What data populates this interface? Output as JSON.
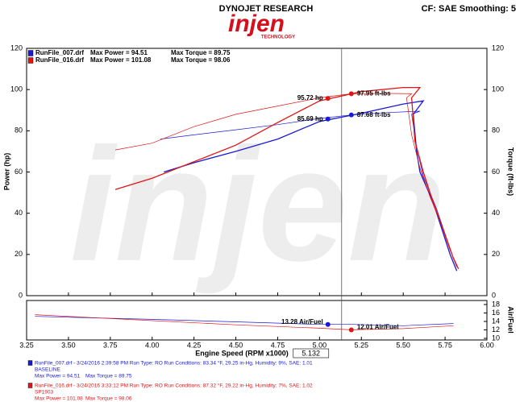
{
  "chart_data": {
    "type": "line",
    "title": "DYNOJET RESEARCH",
    "subtitle": "CF: SAE  Smoothing: 5",
    "logo_text": "injen",
    "logo_subtext": "TECHNOLOGY",
    "xlabel": "Engine Speed (RPM x1000)",
    "ylabel": "Power (hp)",
    "y2label": "Torque (ft-lbs)",
    "afr_label": "Air/Fuel",
    "xlim": [
      3.25,
      6.0
    ],
    "xticks": [
      3.25,
      {
        "value": 3.5,
        "label": "3.50"
      },
      3.75,
      {
        "value": 4.0,
        "label": "4.00"
      },
      4.25,
      {
        "value": 4.5,
        "label": "4.50"
      },
      4.75,
      {
        "value": 5.0,
        "label": "5.00"
      },
      5.25,
      {
        "value": 5.5,
        "label": "5.50"
      },
      5.75,
      {
        "value": 6.0,
        "label": "6.00"
      }
    ],
    "ylim": [
      0,
      120
    ],
    "yticks": [
      0,
      20,
      40,
      60,
      80,
      100,
      120
    ],
    "y2lim": [
      0,
      120
    ],
    "y2ticks": [
      0,
      20,
      40,
      60,
      80,
      100,
      120
    ],
    "afr_lim": [
      10,
      18
    ],
    "afr_ticks": [
      10,
      12,
      14,
      16,
      18
    ],
    "grid": false,
    "cursor": 5.132,
    "runs": [
      {
        "name": "RunFile_007.drf",
        "color": "#1a1ad6",
        "max_power": "Max Power = 94.51",
        "max_torque": "Max Torque = 89.75",
        "info": "RunFile_007.drf - 3/24/2016 2:39:58 PM  Run Type: RO  Run Conditions: 83.34 °F, 29.25 in-Hg,  Humidity:  9%, SAE: 1.01",
        "note": "BASELINE",
        "power": {
          "x": [
            4.07,
            4.25,
            4.5,
            4.75,
            5.0,
            5.25,
            5.5,
            5.62,
            5.56,
            5.58,
            5.6,
            5.68,
            5.72,
            5.78,
            5.82
          ],
          "values": [
            60,
            64.5,
            70,
            76,
            84.5,
            88.5,
            93,
            94.5,
            88,
            70,
            60,
            45,
            35,
            20,
            12
          ]
        },
        "torque": {
          "axis": "y2",
          "x": [
            4.05,
            4.25,
            4.5,
            4.75,
            5.0,
            5.19,
            5.4,
            5.6,
            5.55,
            5.58,
            5.62,
            5.7,
            5.75,
            5.8,
            5.82
          ],
          "values": [
            76,
            78,
            80.5,
            83,
            86,
            87.68,
            88.8,
            89.5,
            88,
            72,
            58,
            42,
            30,
            18,
            14
          ]
        },
        "air_fuel": {
          "x": [
            3.3,
            4.0,
            4.5,
            5.0,
            5.2,
            5.5,
            5.8
          ],
          "values": [
            15.2,
            14.5,
            13.9,
            13.3,
            13.3,
            13.0,
            13.5
          ]
        }
      },
      {
        "name": "RunFile_016.drf",
        "color": "#e01515",
        "max_power": "Max Power = 101.08",
        "max_torque": "Max Torque = 98.06",
        "info": "RunFile_016.drf - 3/24/2016 3:33:12 PM  Run Type: RO  Run Conditions: 87.32 °F, 29.22 in-Hg,  Humidity:  7%, SAE: 1.02",
        "note": "SP1903",
        "power": {
          "x": [
            3.78,
            4.0,
            4.25,
            4.5,
            4.75,
            5.0,
            5.25,
            5.5,
            5.6,
            5.55,
            5.57,
            5.62,
            5.68,
            5.74,
            5.8,
            5.83
          ],
          "values": [
            51.5,
            57,
            65,
            73,
            84,
            94.5,
            99,
            101,
            101,
            96,
            75,
            60,
            45,
            32,
            18,
            13
          ]
        },
        "torque": {
          "axis": "y2",
          "x": [
            3.78,
            4.0,
            4.25,
            4.5,
            4.75,
            5.0,
            5.19,
            5.4,
            5.55,
            5.52,
            5.55,
            5.6,
            5.66,
            5.72,
            5.78,
            5.82
          ],
          "values": [
            70.7,
            74,
            82,
            88,
            92,
            96,
            97.95,
            98.1,
            98,
            96,
            78,
            62,
            48,
            36,
            22,
            15
          ]
        },
        "air_fuel": {
          "x": [
            3.3,
            3.8,
            4.5,
            5.0,
            5.19,
            5.5,
            5.8
          ],
          "values": [
            15.6,
            14.6,
            13.2,
            12.4,
            12.01,
            12.3,
            13.0
          ]
        }
      }
    ],
    "annotations": [
      {
        "run": 1,
        "axis": "y",
        "x": 5.05,
        "value": 95.72,
        "label": "95.72 hp"
      },
      {
        "run": 1,
        "axis": "y2",
        "x": 5.19,
        "value": 97.95,
        "label": "97.95 ft-lbs"
      },
      {
        "run": 0,
        "axis": "y",
        "x": 5.05,
        "value": 85.69,
        "label": "85.69 hp"
      },
      {
        "run": 0,
        "axis": "y2",
        "x": 5.19,
        "value": 87.68,
        "label": "87.68 ft-lbs"
      },
      {
        "run": 0,
        "axis": "afr",
        "x": 5.05,
        "value": 13.28,
        "label": "13.28 Air/Fuel"
      },
      {
        "run": 1,
        "axis": "afr",
        "x": 5.19,
        "value": 12.01,
        "label": "12.01 Air/Fuel"
      }
    ]
  }
}
